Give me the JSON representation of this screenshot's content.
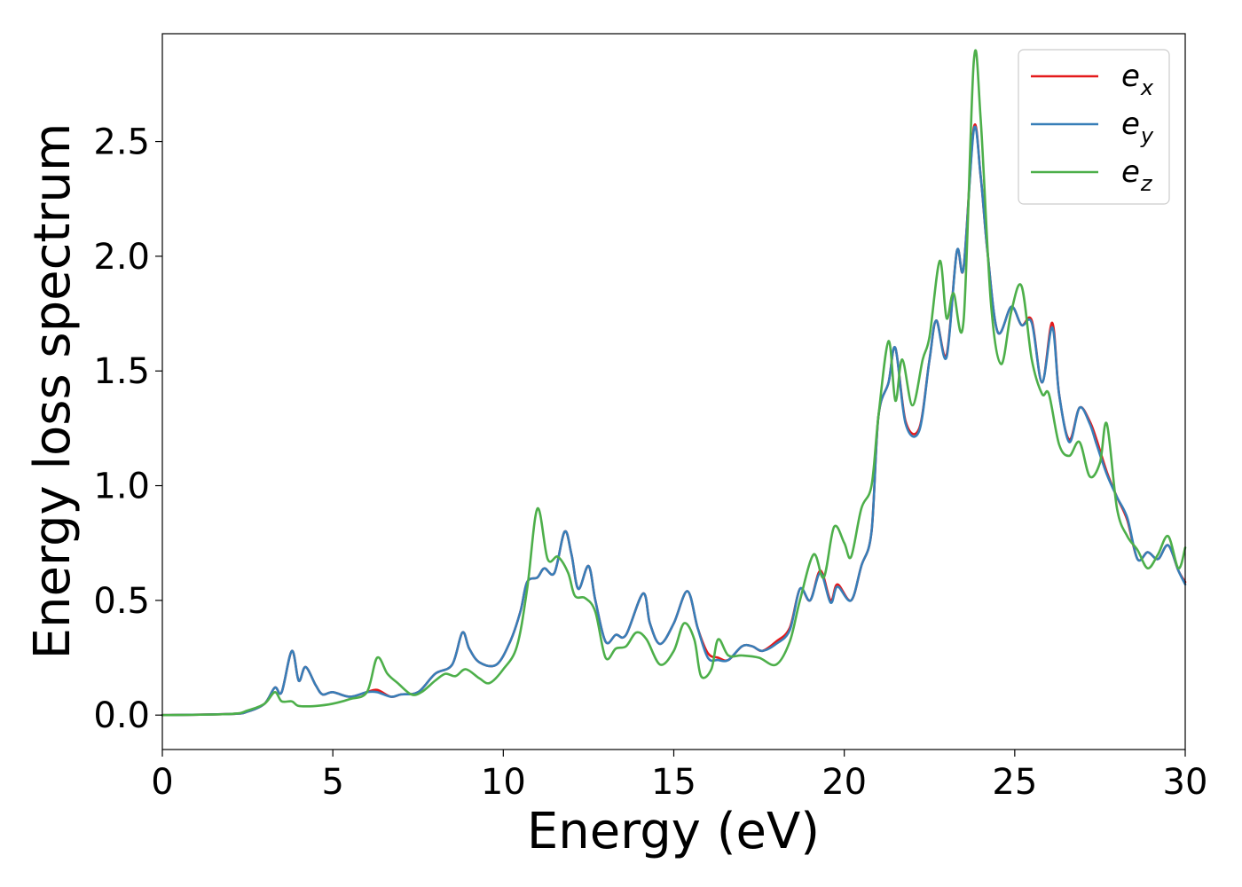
{
  "chart_data": {
    "type": "line",
    "xlabel": "Energy (eV)",
    "ylabel": "Energy loss spectrum",
    "xlim": [
      0,
      30
    ],
    "ylim": [
      -0.15,
      2.97
    ],
    "xticks": [
      0,
      5,
      10,
      15,
      20,
      25,
      30
    ],
    "xtick_labels": [
      "0",
      "5",
      "10",
      "15",
      "20",
      "25",
      "30"
    ],
    "yticks": [
      0.0,
      0.5,
      1.0,
      1.5,
      2.0,
      2.5
    ],
    "ytick_labels": [
      "0.0",
      "0.5",
      "1.0",
      "1.5",
      "2.0",
      "2.5"
    ],
    "grid": false,
    "legend_position": "top-right",
    "series": [
      {
        "name": "e_x",
        "label_base": "e",
        "label_sub": "x",
        "color": "#e41a1c",
        "points": [
          [
            0,
            0
          ],
          [
            2,
            0.005
          ],
          [
            2.5,
            0.015
          ],
          [
            3,
            0.05
          ],
          [
            3.3,
            0.12
          ],
          [
            3.5,
            0.1
          ],
          [
            3.8,
            0.28
          ],
          [
            4.0,
            0.15
          ],
          [
            4.2,
            0.21
          ],
          [
            4.5,
            0.13
          ],
          [
            4.7,
            0.09
          ],
          [
            5,
            0.1
          ],
          [
            5.5,
            0.08
          ],
          [
            6,
            0.1
          ],
          [
            6.3,
            0.11
          ],
          [
            6.7,
            0.08
          ],
          [
            7,
            0.09
          ],
          [
            7.5,
            0.1
          ],
          [
            8,
            0.18
          ],
          [
            8.5,
            0.22
          ],
          [
            8.8,
            0.36
          ],
          [
            9,
            0.29
          ],
          [
            9.3,
            0.23
          ],
          [
            9.8,
            0.22
          ],
          [
            10.2,
            0.32
          ],
          [
            10.5,
            0.45
          ],
          [
            10.7,
            0.58
          ],
          [
            11,
            0.6
          ],
          [
            11.2,
            0.64
          ],
          [
            11.5,
            0.62
          ],
          [
            11.8,
            0.8
          ],
          [
            12,
            0.7
          ],
          [
            12.2,
            0.55
          ],
          [
            12.5,
            0.65
          ],
          [
            12.7,
            0.5
          ],
          [
            13,
            0.32
          ],
          [
            13.3,
            0.35
          ],
          [
            13.6,
            0.35
          ],
          [
            14.1,
            0.53
          ],
          [
            14.3,
            0.4
          ],
          [
            14.6,
            0.31
          ],
          [
            15,
            0.4
          ],
          [
            15.4,
            0.54
          ],
          [
            15.7,
            0.38
          ],
          [
            16,
            0.27
          ],
          [
            16.3,
            0.25
          ],
          [
            16.6,
            0.24
          ],
          [
            17,
            0.3
          ],
          [
            17.3,
            0.3
          ],
          [
            17.6,
            0.28
          ],
          [
            18,
            0.32
          ],
          [
            18.4,
            0.38
          ],
          [
            18.7,
            0.55
          ],
          [
            19,
            0.5
          ],
          [
            19.3,
            0.63
          ],
          [
            19.6,
            0.5
          ],
          [
            19.8,
            0.57
          ],
          [
            20.2,
            0.5
          ],
          [
            20.5,
            0.65
          ],
          [
            20.8,
            0.8
          ],
          [
            21,
            1.3
          ],
          [
            21.3,
            1.45
          ],
          [
            21.5,
            1.6
          ],
          [
            21.8,
            1.28
          ],
          [
            22.2,
            1.25
          ],
          [
            22.5,
            1.55
          ],
          [
            22.7,
            1.72
          ],
          [
            23,
            1.57
          ],
          [
            23.3,
            2.02
          ],
          [
            23.5,
            1.95
          ],
          [
            23.8,
            2.56
          ],
          [
            24,
            2.35
          ],
          [
            24.2,
            2.02
          ],
          [
            24.5,
            1.67
          ],
          [
            24.9,
            1.78
          ],
          [
            25.2,
            1.7
          ],
          [
            25.5,
            1.72
          ],
          [
            25.8,
            1.45
          ],
          [
            26.1,
            1.71
          ],
          [
            26.3,
            1.4
          ],
          [
            26.6,
            1.2
          ],
          [
            26.9,
            1.34
          ],
          [
            27.2,
            1.28
          ],
          [
            27.4,
            1.2
          ],
          [
            27.7,
            1.06
          ],
          [
            28,
            0.95
          ],
          [
            28.3,
            0.85
          ],
          [
            28.6,
            0.68
          ],
          [
            28.9,
            0.71
          ],
          [
            29.2,
            0.68
          ],
          [
            29.5,
            0.74
          ],
          [
            29.8,
            0.63
          ],
          [
            30,
            0.58
          ]
        ]
      },
      {
        "name": "e_y",
        "label_base": "e",
        "label_sub": "y",
        "color": "#377eb8",
        "points": [
          [
            0,
            0
          ],
          [
            2,
            0.005
          ],
          [
            2.5,
            0.015
          ],
          [
            3,
            0.05
          ],
          [
            3.3,
            0.12
          ],
          [
            3.5,
            0.1
          ],
          [
            3.8,
            0.28
          ],
          [
            4.0,
            0.15
          ],
          [
            4.2,
            0.21
          ],
          [
            4.5,
            0.13
          ],
          [
            4.7,
            0.09
          ],
          [
            5,
            0.1
          ],
          [
            5.5,
            0.08
          ],
          [
            6,
            0.1
          ],
          [
            6.3,
            0.1
          ],
          [
            6.7,
            0.08
          ],
          [
            7,
            0.09
          ],
          [
            7.5,
            0.1
          ],
          [
            8,
            0.18
          ],
          [
            8.5,
            0.22
          ],
          [
            8.8,
            0.36
          ],
          [
            9,
            0.29
          ],
          [
            9.3,
            0.23
          ],
          [
            9.8,
            0.22
          ],
          [
            10.2,
            0.32
          ],
          [
            10.5,
            0.45
          ],
          [
            10.7,
            0.58
          ],
          [
            11,
            0.6
          ],
          [
            11.2,
            0.64
          ],
          [
            11.5,
            0.62
          ],
          [
            11.8,
            0.8
          ],
          [
            12,
            0.7
          ],
          [
            12.2,
            0.55
          ],
          [
            12.5,
            0.65
          ],
          [
            12.7,
            0.5
          ],
          [
            13,
            0.32
          ],
          [
            13.3,
            0.35
          ],
          [
            13.6,
            0.35
          ],
          [
            14.1,
            0.53
          ],
          [
            14.3,
            0.4
          ],
          [
            14.6,
            0.31
          ],
          [
            15,
            0.4
          ],
          [
            15.4,
            0.54
          ],
          [
            15.7,
            0.38
          ],
          [
            16,
            0.25
          ],
          [
            16.3,
            0.24
          ],
          [
            16.6,
            0.24
          ],
          [
            17,
            0.3
          ],
          [
            17.3,
            0.3
          ],
          [
            17.6,
            0.28
          ],
          [
            18,
            0.31
          ],
          [
            18.4,
            0.37
          ],
          [
            18.7,
            0.55
          ],
          [
            19,
            0.5
          ],
          [
            19.3,
            0.62
          ],
          [
            19.6,
            0.49
          ],
          [
            19.8,
            0.56
          ],
          [
            20.2,
            0.5
          ],
          [
            20.5,
            0.65
          ],
          [
            20.8,
            0.8
          ],
          [
            21,
            1.3
          ],
          [
            21.3,
            1.45
          ],
          [
            21.5,
            1.6
          ],
          [
            21.8,
            1.27
          ],
          [
            22.2,
            1.24
          ],
          [
            22.5,
            1.55
          ],
          [
            22.7,
            1.72
          ],
          [
            23,
            1.56
          ],
          [
            23.3,
            2.02
          ],
          [
            23.5,
            1.95
          ],
          [
            23.8,
            2.55
          ],
          [
            24,
            2.35
          ],
          [
            24.2,
            2.02
          ],
          [
            24.5,
            1.67
          ],
          [
            24.9,
            1.78
          ],
          [
            25.2,
            1.7
          ],
          [
            25.5,
            1.71
          ],
          [
            25.8,
            1.45
          ],
          [
            26.1,
            1.69
          ],
          [
            26.3,
            1.4
          ],
          [
            26.6,
            1.19
          ],
          [
            26.9,
            1.34
          ],
          [
            27.2,
            1.27
          ],
          [
            27.4,
            1.18
          ],
          [
            27.7,
            1.05
          ],
          [
            28,
            0.95
          ],
          [
            28.3,
            0.86
          ],
          [
            28.6,
            0.68
          ],
          [
            28.9,
            0.71
          ],
          [
            29.2,
            0.68
          ],
          [
            29.5,
            0.74
          ],
          [
            29.8,
            0.63
          ],
          [
            30,
            0.57
          ]
        ]
      },
      {
        "name": "e_z",
        "label_base": "e",
        "label_sub": "z",
        "color": "#4daf4a",
        "points": [
          [
            0,
            0
          ],
          [
            2,
            0.005
          ],
          [
            2.5,
            0.02
          ],
          [
            3,
            0.05
          ],
          [
            3.3,
            0.1
          ],
          [
            3.5,
            0.06
          ],
          [
            3.8,
            0.06
          ],
          [
            4.0,
            0.04
          ],
          [
            4.5,
            0.04
          ],
          [
            5,
            0.05
          ],
          [
            5.5,
            0.07
          ],
          [
            6,
            0.1
          ],
          [
            6.3,
            0.25
          ],
          [
            6.6,
            0.18
          ],
          [
            6.9,
            0.14
          ],
          [
            7.3,
            0.09
          ],
          [
            7.6,
            0.1
          ],
          [
            8,
            0.15
          ],
          [
            8.3,
            0.18
          ],
          [
            8.6,
            0.17
          ],
          [
            8.9,
            0.2
          ],
          [
            9.3,
            0.16
          ],
          [
            9.6,
            0.14
          ],
          [
            10,
            0.2
          ],
          [
            10.4,
            0.3
          ],
          [
            10.7,
            0.55
          ],
          [
            11,
            0.9
          ],
          [
            11.3,
            0.68
          ],
          [
            11.6,
            0.69
          ],
          [
            11.9,
            0.62
          ],
          [
            12.1,
            0.52
          ],
          [
            12.4,
            0.51
          ],
          [
            12.7,
            0.45
          ],
          [
            13,
            0.25
          ],
          [
            13.3,
            0.29
          ],
          [
            13.6,
            0.3
          ],
          [
            13.9,
            0.36
          ],
          [
            14.2,
            0.33
          ],
          [
            14.6,
            0.22
          ],
          [
            15,
            0.28
          ],
          [
            15.3,
            0.4
          ],
          [
            15.6,
            0.33
          ],
          [
            15.8,
            0.17
          ],
          [
            16.1,
            0.2
          ],
          [
            16.3,
            0.33
          ],
          [
            16.6,
            0.26
          ],
          [
            17,
            0.26
          ],
          [
            17.5,
            0.25
          ],
          [
            18,
            0.22
          ],
          [
            18.4,
            0.32
          ],
          [
            18.7,
            0.5
          ],
          [
            19.1,
            0.7
          ],
          [
            19.4,
            0.6
          ],
          [
            19.7,
            0.82
          ],
          [
            20,
            0.75
          ],
          [
            20.2,
            0.69
          ],
          [
            20.5,
            0.9
          ],
          [
            20.8,
            1.0
          ],
          [
            21,
            1.3
          ],
          [
            21.3,
            1.63
          ],
          [
            21.5,
            1.37
          ],
          [
            21.7,
            1.55
          ],
          [
            22,
            1.35
          ],
          [
            22.3,
            1.55
          ],
          [
            22.5,
            1.65
          ],
          [
            22.8,
            1.98
          ],
          [
            23,
            1.73
          ],
          [
            23.2,
            1.84
          ],
          [
            23.5,
            1.72
          ],
          [
            23.8,
            2.85
          ],
          [
            24,
            2.6
          ],
          [
            24.3,
            1.8
          ],
          [
            24.6,
            1.53
          ],
          [
            24.9,
            1.76
          ],
          [
            25.2,
            1.87
          ],
          [
            25.5,
            1.55
          ],
          [
            25.8,
            1.4
          ],
          [
            26,
            1.4
          ],
          [
            26.3,
            1.18
          ],
          [
            26.6,
            1.13
          ],
          [
            26.9,
            1.19
          ],
          [
            27.2,
            1.04
          ],
          [
            27.5,
            1.1
          ],
          [
            27.7,
            1.27
          ],
          [
            28,
            0.9
          ],
          [
            28.3,
            0.78
          ],
          [
            28.6,
            0.72
          ],
          [
            28.9,
            0.64
          ],
          [
            29.2,
            0.7
          ],
          [
            29.5,
            0.78
          ],
          [
            29.8,
            0.64
          ],
          [
            30,
            0.73
          ]
        ]
      }
    ]
  }
}
